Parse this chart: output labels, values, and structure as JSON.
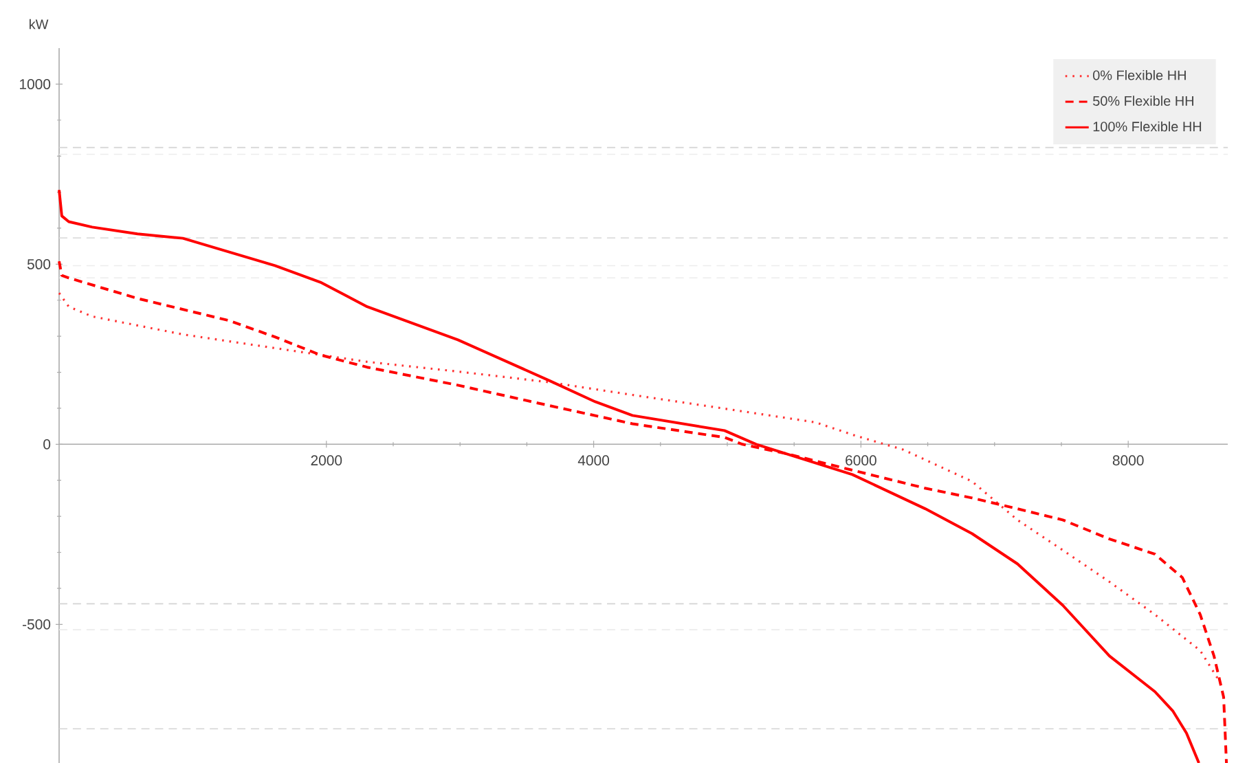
{
  "chart_data": {
    "type": "line",
    "ylabel": "kW",
    "xlim": [
      0,
      8745
    ],
    "ylim": [
      -885,
      1100
    ],
    "xticks": [
      2000,
      4000,
      6000,
      8000
    ],
    "yticks": [
      -500,
      0,
      500,
      1000
    ],
    "legend": "top right",
    "grid": false,
    "ref_lines": [
      {
        "axis": "y",
        "value": 824,
        "color": "#d4d4d4",
        "line_style": "dashed"
      },
      {
        "axis": "y",
        "value": 805,
        "color": "#ececec",
        "line_style": "dashed"
      },
      {
        "axis": "y",
        "value": 573,
        "color": "#dddddd",
        "line_style": "dashed"
      },
      {
        "axis": "y",
        "value": 496,
        "color": "#ececec",
        "line_style": "dashed"
      },
      {
        "axis": "y",
        "value": 462,
        "color": "#ececec",
        "line_style": "dashed"
      },
      {
        "axis": "y",
        "value": -443,
        "color": "#d4d4d4",
        "line_style": "dashed"
      },
      {
        "axis": "y",
        "value": -515,
        "color": "#ececec",
        "line_style": "dashed"
      },
      {
        "axis": "y",
        "value": -790,
        "color": "#d4d4d4",
        "line_style": "dashed"
      }
    ],
    "series": [
      {
        "name": "0% Flexible HH",
        "color": "#ff3333",
        "line_style": "dotted",
        "x": [
          0,
          72,
          247,
          926,
          1615,
          2305,
          2984,
          3673,
          4290,
          4979,
          5658,
          5967,
          6317,
          6831,
          7171,
          7510,
          7860,
          8200,
          8539,
          8693
        ],
        "values": [
          420,
          382,
          355,
          305,
          267,
          229,
          202,
          172,
          137,
          99,
          61,
          23,
          -15,
          -103,
          -210,
          -294,
          -382,
          -473,
          -573,
          -664
        ]
      },
      {
        "name": "50% Flexible HH",
        "color": "#ff0000",
        "line_style": "dashed",
        "x": [
          0,
          20,
          72,
          586,
          1276,
          1615,
          1955,
          2305,
          2984,
          3673,
          4290,
          4979,
          5113,
          5453,
          5936,
          6481,
          6831,
          7171,
          7510,
          7860,
          8200,
          8405,
          8539,
          8642,
          8714,
          8735
        ],
        "values": [
          508,
          469,
          462,
          405,
          343,
          298,
          248,
          214,
          164,
          107,
          57,
          19,
          0,
          -27,
          -72,
          -122,
          -149,
          -179,
          -210,
          -263,
          -305,
          -370,
          -473,
          -588,
          -702,
          -885
        ]
      },
      {
        "name": "100% Flexible HH",
        "color": "#ff0000",
        "line_style": "solid",
        "x": [
          0,
          20,
          72,
          247,
          586,
          926,
          1615,
          1955,
          2305,
          2984,
          3673,
          4012,
          4290,
          4979,
          5216,
          5936,
          6481,
          6831,
          7171,
          7510,
          7860,
          8200,
          8333,
          8436,
          8529
        ],
        "values": [
          706,
          634,
          618,
          603,
          584,
          572,
          496,
          450,
          382,
          290,
          176,
          118,
          80,
          38,
          0,
          -84,
          -179,
          -248,
          -332,
          -447,
          -588,
          -687,
          -740,
          -802,
          -885
        ]
      }
    ]
  }
}
